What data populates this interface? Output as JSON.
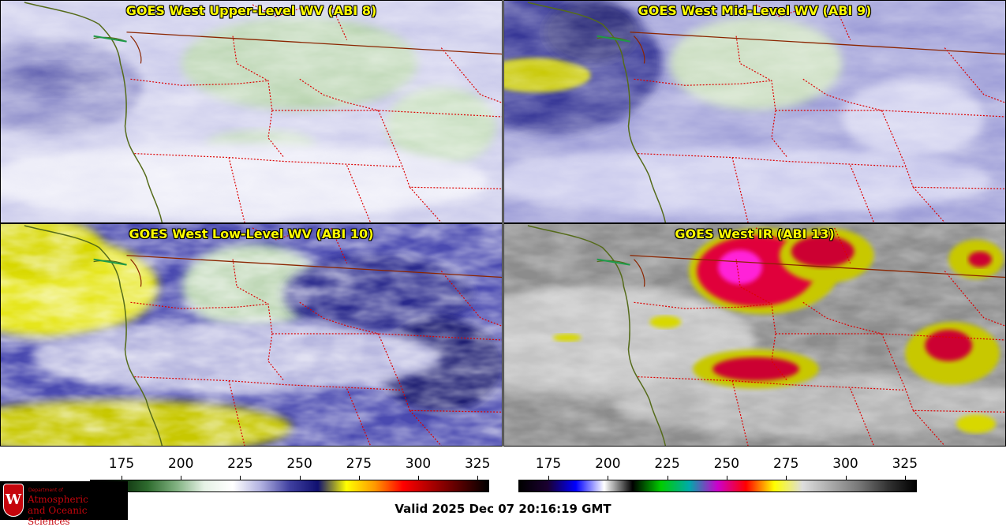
{
  "panels": [
    {
      "title": "GOES West Upper-Level WV (ABI 8)",
      "product": "upper-wv"
    },
    {
      "title": "GOES West Mid-Level WV (ABI 9)",
      "product": "mid-wv"
    },
    {
      "title": "GOES West Low-Level WV (ABI 10)",
      "product": "low-wv"
    },
    {
      "title": "GOES West IR (ABI 13)",
      "product": "ir"
    }
  ],
  "colorbars": [
    {
      "name": "water-vapor-colorbar",
      "ticks": [
        "175",
        "200",
        "225",
        "250",
        "275",
        "300",
        "325"
      ],
      "stops": [
        "#000000",
        "#0b2a0b",
        "#2e6b2e",
        "#7fb07f",
        "#e6f2e6",
        "#ffffff",
        "#b0b0e0",
        "#4040a0",
        "#101070",
        "#ffff00",
        "#ff9900",
        "#ff0000",
        "#aa0000",
        "#550000",
        "#000000"
      ]
    },
    {
      "name": "ir-colorbar",
      "ticks": [
        "175",
        "200",
        "225",
        "250",
        "275",
        "300",
        "325"
      ],
      "stops": [
        "#000000",
        "#1a0030",
        "#0000ff",
        "#ffffff",
        "#000000",
        "#00cc00",
        "#00aaaa",
        "#cc00cc",
        "#ff0000",
        "#ffff00",
        "#dddddd",
        "#aaaaaa",
        "#777777",
        "#333333",
        "#000000"
      ]
    }
  ],
  "footer": {
    "valid_time": "Valid 2025 Dec 07 20:16:19 GMT"
  },
  "logo": {
    "department": "Department of",
    "line1": "Atmospheric",
    "line2": "and Oceanic Sciences",
    "crest_letter": "W"
  },
  "colors": {
    "border_line": "#8b2500",
    "state_line": "#dd0000",
    "coastline": "#556b1a",
    "title_text": "#ffff00"
  }
}
